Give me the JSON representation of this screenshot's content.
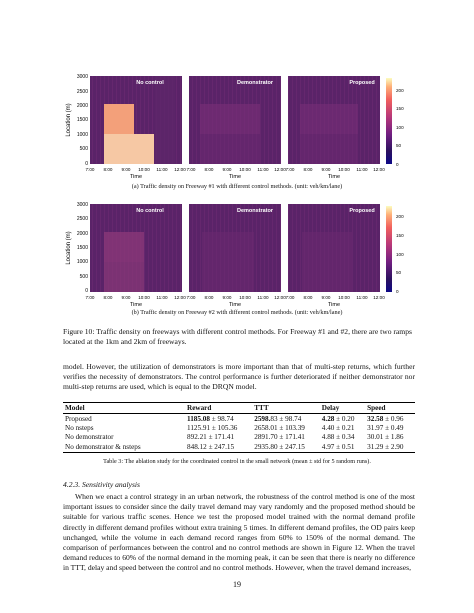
{
  "figure": {
    "y_axis_label": "Location (m)",
    "x_axis_label": "Time",
    "y_ticks": [
      "3000",
      "2500",
      "2000",
      "1500",
      "1000",
      "500",
      "0"
    ],
    "x_ticks": [
      "7:00",
      "8:00",
      "9:00",
      "10:00",
      "11:00",
      "12:00"
    ],
    "colorbar_ticks": [
      "200",
      "150",
      "100",
      "50",
      "0"
    ],
    "panels": [
      "No control",
      "Demonstrator",
      "Proposed"
    ],
    "sub_caption_a": "(a)  Traffic density on Freeway #1 with different control methods. (unit: veh/km/lane)",
    "sub_caption_b": "(b)  Traffic density on Freeway #2 with different control methods. (unit: veh/km/lane)"
  },
  "figure_caption": "Figure 10: Traffic density on freeways with different control methods. For Freeway #1 and #2, there are two ramps located at the 1km and 2km of freeways.",
  "paragraph_1": "model. However, the utilization of demonstrators is more important than that of multi-step returns, which further verifies the necessity of demonstrators. The control performance is further deteriorated if neither demonstrator nor multi-step returns are used, which is equal to the DRQN model.",
  "table": {
    "headers": [
      "Model",
      "Reward",
      "TTT",
      "Delay",
      "Speed"
    ],
    "rows": [
      {
        "model": "Proposed",
        "reward_bold": "1185.08",
        "reward_rest": " ± 98.74",
        "ttt_bold": "2598.",
        "ttt_rest": "83 ± 98.74",
        "delay_bold": "4.28",
        "delay_rest": " ± 0.20",
        "speed_bold": "32.58",
        "speed_rest": " ± 0.96"
      },
      {
        "model": "No nsteps",
        "reward": "1125.91 ± 105.36",
        "ttt": "2658.01 ± 103.39",
        "delay": "4.40 ± 0.21",
        "speed": "31.97 ± 0.49"
      },
      {
        "model": "No demonstrator",
        "reward": "892.21 ± 171.41",
        "ttt": "2891.70 ± 171.41",
        "delay": "4.88 ± 0.34",
        "speed": "30.01 ± 1.86"
      },
      {
        "model": "No demonstrator & nsteps",
        "reward": "848.12 ± 247.15",
        "ttt": "2935.80 ± 247.15",
        "delay": "4.97 ± 0.51",
        "speed": "31.29 ± 2.90"
      }
    ],
    "caption": "Table 3: The ablation study for the coordinated control in the small network (mean ± std for 5 random runs)."
  },
  "section_heading": "4.2.3.  Sensitivity analysis",
  "paragraph_2": "When we enact a control strategy in an urban network, the robustness of the control method is one of the most important issues to consider since the daily travel demand may vary randomly and the proposed method should be suitable for various traffic scenes. Hence we test the proposed model trained with the normal demand profile directly in different demand profiles without extra training 5 times. In different demand profiles, the OD pairs keep unchanged, while the volume in each demand record ranges from 60% to 150% of the normal demand. The comparison of performances between the control and no control methods are shown in Figure 12. When the travel demand reduces to 60% of the normal demand in the morning peak, it can be seen that there is nearly no difference in TTT, delay and speed between the control and no control methods. However, when the travel demand increases,",
  "page_number": "19",
  "colors": {
    "dark": "#4a1e5a",
    "mid": "#6b2c72",
    "hot": "#f0966a",
    "light": "#f7c9a2"
  }
}
